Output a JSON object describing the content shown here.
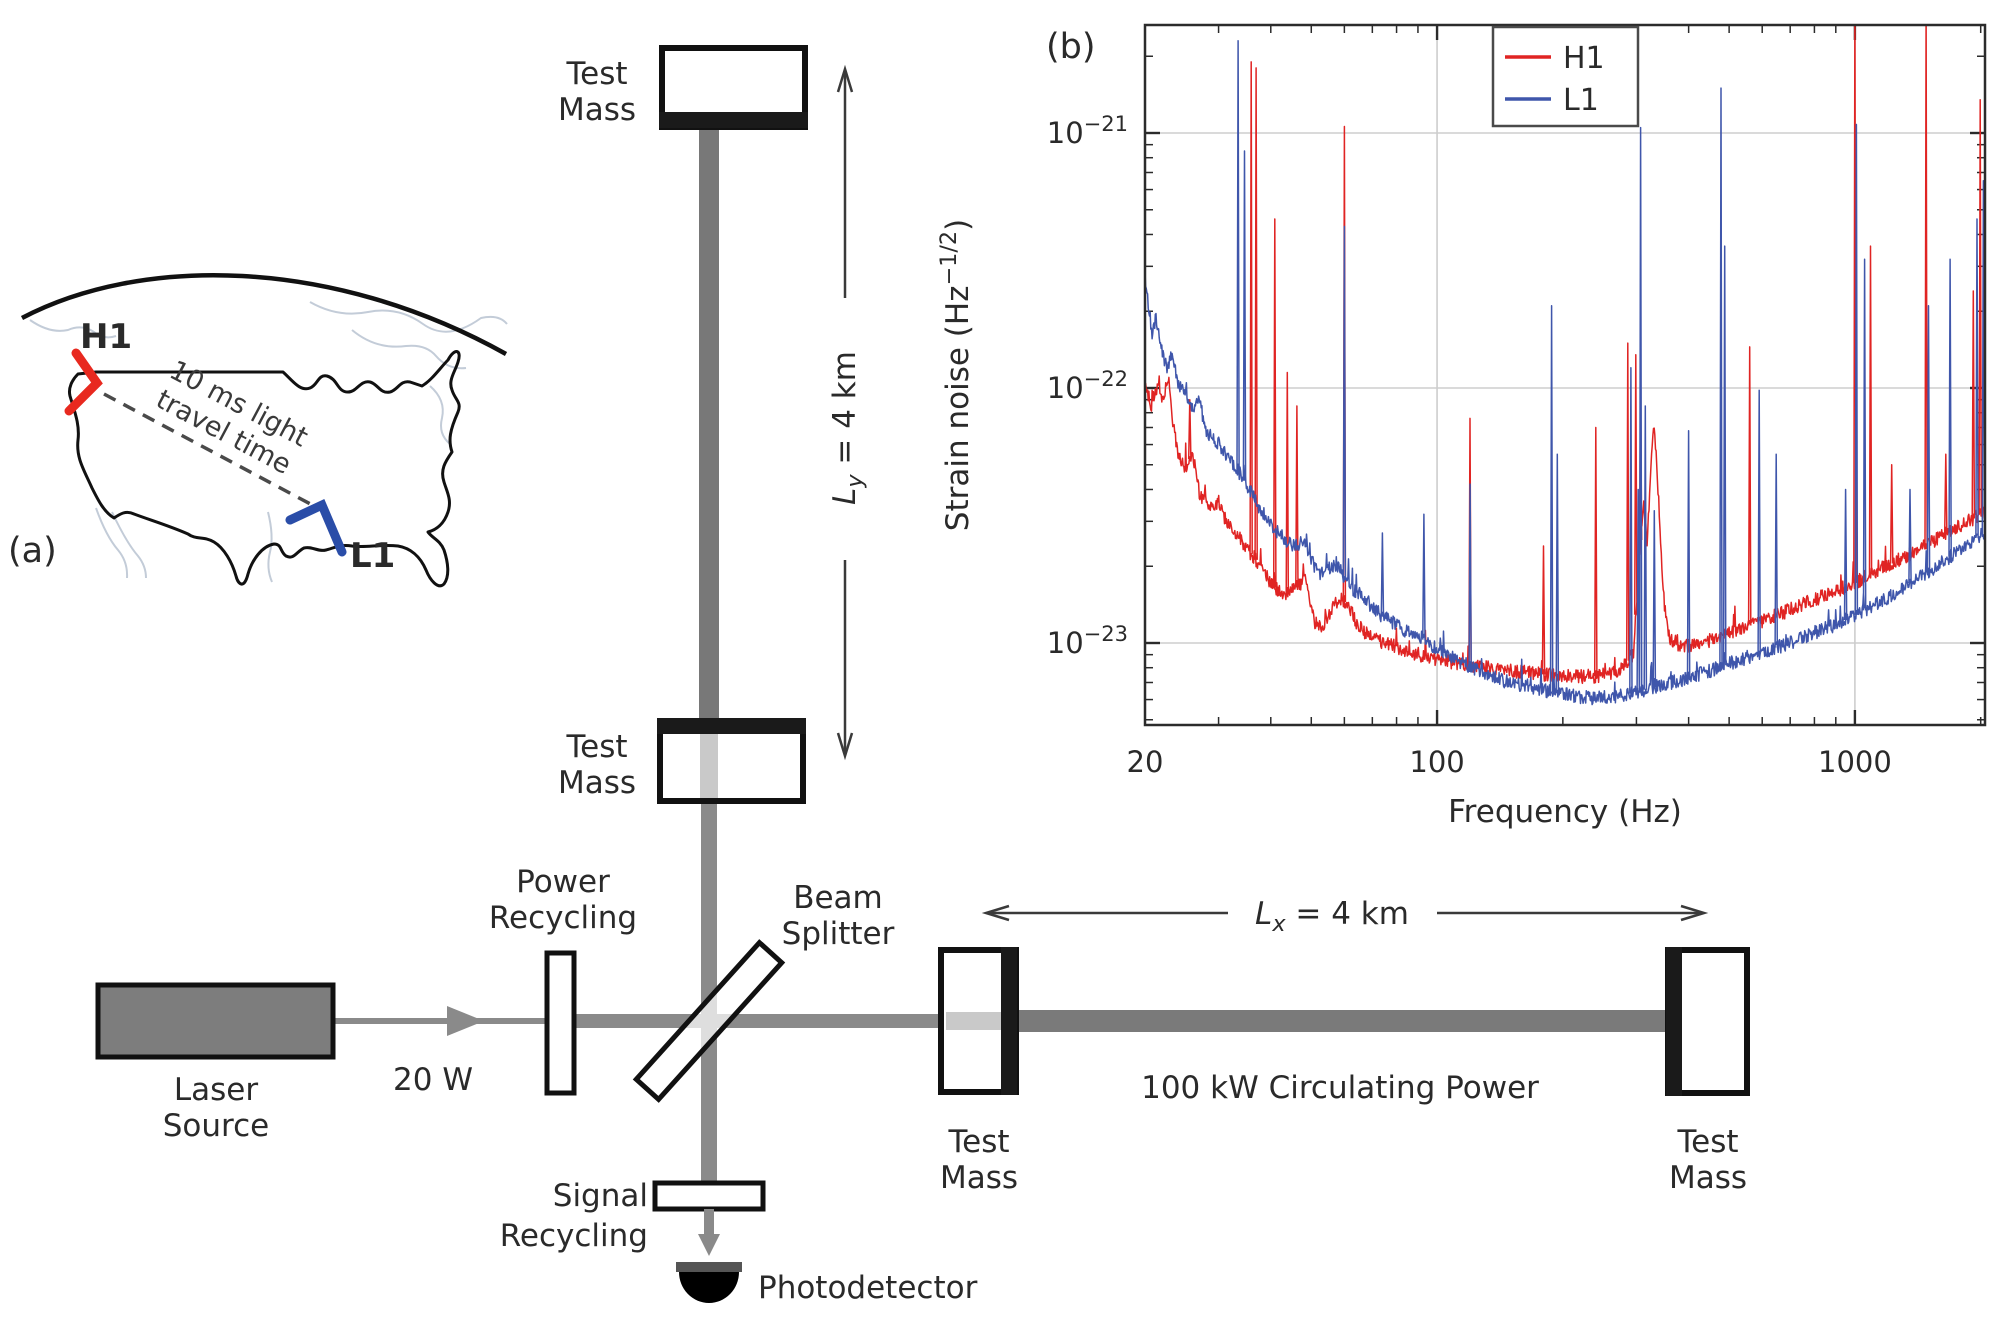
{
  "panel_a": {
    "tag": "(a)",
    "h1_label": "H1",
    "l1_label": "L1",
    "travel_line1": "10 ms light",
    "travel_line2": "travel time",
    "h1_color": "#e8291f",
    "l1_color": "#2a4da8"
  },
  "interferometer": {
    "test_mass_line1": "Test",
    "test_mass_line2": "Mass",
    "laser_line1": "Laser",
    "laser_line2": "Source",
    "power_line1": "Power",
    "power_line2": "Recycling",
    "beamsplitter_line1": "Beam",
    "beamsplitter_line2": "Splitter",
    "signal_line1": "Signal",
    "signal_line2": "Recycling",
    "photodetector_label": "Photodetector",
    "input_power": "20 W",
    "circulating_power": "100 kW Circulating Power",
    "l_pre": "L",
    "ly_sub": "y",
    "lx_sub": "x",
    "l_post": " = 4 km"
  },
  "chart_data": {
    "type": "line",
    "panel_tag": "(b)",
    "xlabel": "Frequency (Hz)",
    "ylabel_pre": "Strain noise (Hz",
    "ylabel_sup": "−1/2",
    "ylabel_post": ")",
    "x_scale": "log",
    "y_scale": "log",
    "xlim": [
      20,
      2048
    ],
    "ylim": [
      4.8e-24,
      2.65e-21
    ],
    "grid": true,
    "legend_position": "upper right",
    "x_gridlines": [
      100,
      1000
    ],
    "x_ticks": [
      {
        "f": 20,
        "label": "20"
      },
      {
        "f": 100,
        "label": "100"
      },
      {
        "f": 1000,
        "label": "1000"
      }
    ],
    "y_tick_exponents": [
      -21,
      -22,
      -23
    ],
    "series": [
      {
        "name": "H1",
        "color": "#e02423",
        "floor": [
          [
            20,
            1.05e-22
          ],
          [
            20.7,
            8.5e-23
          ],
          [
            21.3,
            1e-22
          ],
          [
            22,
            9.2e-23
          ],
          [
            22.8,
            1.08e-22
          ],
          [
            23.4,
            7e-23
          ],
          [
            24,
            5.5e-23
          ],
          [
            25,
            4.8e-23
          ],
          [
            26,
            5.6e-23
          ],
          [
            27,
            3.8e-23
          ],
          [
            28.5,
            3.4e-23
          ],
          [
            30,
            3.6e-23
          ],
          [
            31.5,
            2.9e-23
          ],
          [
            33,
            2.7e-23
          ],
          [
            35,
            2.35e-23
          ],
          [
            38,
            2e-23
          ],
          [
            40,
            1.7e-23
          ],
          [
            43,
            1.55e-23
          ],
          [
            46,
            1.65e-23
          ],
          [
            48.5,
            1.8e-23
          ],
          [
            51,
            1.2e-23
          ],
          [
            53,
            1.15e-23
          ],
          [
            56,
            1.35e-23
          ],
          [
            58.5,
            1.5e-23
          ],
          [
            61.5,
            1.4e-23
          ],
          [
            64,
            1.2e-23
          ],
          [
            68,
            1.08e-23
          ],
          [
            75,
            1e-23
          ],
          [
            85,
            9.3e-24
          ],
          [
            95,
            8.8e-24
          ],
          [
            105,
            8.5e-24
          ],
          [
            120,
            8.2e-24
          ],
          [
            140,
            7.9e-24
          ],
          [
            170,
            7.6e-24
          ],
          [
            200,
            7.4e-24
          ],
          [
            240,
            7.4e-24
          ],
          [
            270,
            7.7e-24
          ],
          [
            295,
            9e-24
          ],
          [
            305,
            2.2e-23
          ],
          [
            312,
            3.6e-23
          ],
          [
            318,
            2.4e-23
          ],
          [
            324,
            4.5e-23
          ],
          [
            330,
            7.5e-23
          ],
          [
            336,
            5e-23
          ],
          [
            342,
            2.6e-23
          ],
          [
            350,
            1.4e-23
          ],
          [
            360,
            1.05e-23
          ],
          [
            380,
            9.8e-24
          ],
          [
            420,
            9.8e-24
          ],
          [
            470,
            1.05e-23
          ],
          [
            520,
            1.12e-23
          ],
          [
            600,
            1.22e-23
          ],
          [
            700,
            1.35e-23
          ],
          [
            800,
            1.48e-23
          ],
          [
            900,
            1.6e-23
          ],
          [
            1000,
            1.72e-23
          ],
          [
            1150,
            1.95e-23
          ],
          [
            1300,
            2.15e-23
          ],
          [
            1500,
            2.45e-23
          ],
          [
            1700,
            2.75e-23
          ],
          [
            1900,
            3.05e-23
          ],
          [
            2048,
            3.25e-23
          ]
        ],
        "spikes": [
          [
            25.6,
            9e-23
          ],
          [
            35.9,
            1.9e-21
          ],
          [
            36.9,
            1.8e-21
          ],
          [
            40.9,
            4.6e-22
          ],
          [
            43.8,
            1.15e-22
          ],
          [
            46.2,
            8.5e-23
          ],
          [
            60,
            1.06e-21
          ],
          [
            119.9,
            7.6e-23
          ],
          [
            179.8,
            2.4e-23
          ],
          [
            239.8,
            7e-23
          ],
          [
            286,
            1.5e-22
          ],
          [
            299,
            1.35e-22
          ],
          [
            307,
            9e-23
          ],
          [
            560,
            1.45e-22
          ],
          [
            1000,
            3.2e-21
          ],
          [
            1090,
            3.6e-22
          ],
          [
            1225,
            5e-23
          ],
          [
            1480,
            3.2e-21
          ],
          [
            1650,
            5.5e-23
          ],
          [
            1920,
            2.4e-22
          ],
          [
            1995,
            1.35e-21
          ]
        ]
      },
      {
        "name": "L1",
        "color": "#3f56ab",
        "floor": [
          [
            20,
            2.4e-22
          ],
          [
            20.4,
            2.15e-22
          ],
          [
            20.8,
            1.55e-22
          ],
          [
            21.2,
            1.9e-22
          ],
          [
            21.8,
            1.45e-22
          ],
          [
            22.5,
            1.2e-22
          ],
          [
            23.2,
            1.35e-22
          ],
          [
            24,
            1.05e-22
          ],
          [
            25,
            9.5e-23
          ],
          [
            26,
            8.2e-23
          ],
          [
            27,
            8.8e-23
          ],
          [
            28,
            6.8e-23
          ],
          [
            29.5,
            6.2e-23
          ],
          [
            31,
            5.6e-23
          ],
          [
            33,
            4.9e-23
          ],
          [
            35,
            4.2e-23
          ],
          [
            37,
            3.5e-23
          ],
          [
            39,
            3.1e-23
          ],
          [
            41,
            2.8e-23
          ],
          [
            43.5,
            2.5e-23
          ],
          [
            46,
            2.4e-23
          ],
          [
            48,
            2.5e-23
          ],
          [
            50,
            2.1e-23
          ],
          [
            52.5,
            1.85e-23
          ],
          [
            55,
            1.95e-23
          ],
          [
            57.5,
            2.05e-23
          ],
          [
            60,
            1.8e-23
          ],
          [
            63,
            1.6e-23
          ],
          [
            66,
            1.55e-23
          ],
          [
            70,
            1.38e-23
          ],
          [
            75,
            1.25e-23
          ],
          [
            80,
            1.18e-23
          ],
          [
            85,
            1.1e-23
          ],
          [
            90,
            1.08e-23
          ],
          [
            95,
            1e-23
          ],
          [
            100,
            9.4e-24
          ],
          [
            110,
            8.7e-24
          ],
          [
            125,
            7.8e-24
          ],
          [
            140,
            7.2e-24
          ],
          [
            160,
            6.8e-24
          ],
          [
            180,
            6.5e-24
          ],
          [
            200,
            6.3e-24
          ],
          [
            230,
            6.1e-24
          ],
          [
            260,
            6.1e-24
          ],
          [
            300,
            6.4e-24
          ],
          [
            350,
            6.9e-24
          ],
          [
            400,
            7.3e-24
          ],
          [
            450,
            7.8e-24
          ],
          [
            500,
            8.3e-24
          ],
          [
            600,
            9.2e-24
          ],
          [
            700,
            1e-23
          ],
          [
            800,
            1.1e-23
          ],
          [
            900,
            1.18e-23
          ],
          [
            1000,
            1.28e-23
          ],
          [
            1150,
            1.45e-23
          ],
          [
            1300,
            1.65e-23
          ],
          [
            1500,
            1.9e-23
          ],
          [
            1700,
            2.2e-23
          ],
          [
            1900,
            2.5e-23
          ],
          [
            2048,
            2.7e-23
          ]
        ],
        "spikes": [
          [
            33.4,
            2.3e-21
          ],
          [
            34.6,
            8.5e-22
          ],
          [
            60,
            4.3e-22
          ],
          [
            74,
            2.7e-23
          ],
          [
            93,
            3.2e-23
          ],
          [
            120,
            4.2e-23
          ],
          [
            188,
            2.1e-22
          ],
          [
            194,
            5.5e-23
          ],
          [
            291,
            1.2e-22
          ],
          [
            303,
            4e-23
          ],
          [
            307,
            1.05e-21
          ],
          [
            315,
            8.5e-23
          ],
          [
            331,
            3.3e-23
          ],
          [
            400,
            6.8e-23
          ],
          [
            478,
            1.5e-21
          ],
          [
            488,
            3.6e-22
          ],
          [
            590,
            9.8e-23
          ],
          [
            648,
            5.5e-23
          ],
          [
            950,
            4e-23
          ],
          [
            1008,
            1.08e-21
          ],
          [
            1055,
            3.2e-22
          ],
          [
            1355,
            4e-23
          ],
          [
            1500,
            2.1e-22
          ],
          [
            1690,
            3.2e-22
          ],
          [
            1960,
            4.6e-22
          ],
          [
            2030,
            6.5e-22
          ]
        ]
      }
    ]
  }
}
